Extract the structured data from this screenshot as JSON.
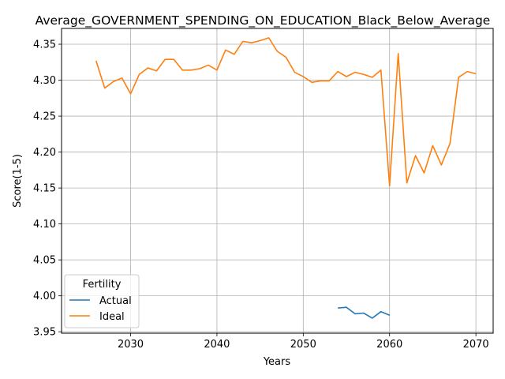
{
  "chart_data": {
    "type": "line",
    "title": "Average_GOVERNMENT_SPENDING_ON_EDUCATION_Black_Below_Average",
    "xlabel": "Years",
    "ylabel": "Score(1-5)",
    "xlim": [
      2022,
      2072
    ],
    "ylim": [
      3.948,
      4.372
    ],
    "xticks": [
      2030,
      2040,
      2050,
      2060,
      2070
    ],
    "yticks": [
      3.95,
      4.0,
      4.05,
      4.1,
      4.15,
      4.2,
      4.25,
      4.3,
      4.35
    ],
    "ytick_labels": [
      "3.95",
      "4.00",
      "4.05",
      "4.10",
      "4.15",
      "4.20",
      "4.25",
      "4.30",
      "4.35"
    ],
    "grid": true,
    "legend": {
      "title": "Fertility",
      "location": "lower-left"
    },
    "series": [
      {
        "name": "Actual",
        "color": "#1f77b4",
        "x": [
          2054,
          2055,
          2056,
          2057,
          2058,
          2059,
          2060
        ],
        "y": [
          3.983,
          3.984,
          3.975,
          3.976,
          3.969,
          3.978,
          3.973
        ]
      },
      {
        "name": "Ideal",
        "color": "#ff7f0e",
        "x": [
          2026,
          2027,
          2028,
          2029,
          2030,
          2031,
          2032,
          2033,
          2034,
          2035,
          2036,
          2037,
          2038,
          2039,
          2040,
          2041,
          2042,
          2043,
          2044,
          2045,
          2046,
          2047,
          2048,
          2049,
          2050,
          2051,
          2052,
          2053,
          2054,
          2055,
          2056,
          2057,
          2058,
          2059,
          2060,
          2061,
          2062,
          2063,
          2064,
          2065,
          2066,
          2067,
          2068,
          2069,
          2070
        ],
        "y": [
          4.327,
          4.289,
          4.298,
          4.303,
          4.281,
          4.308,
          4.317,
          4.313,
          4.329,
          4.329,
          4.314,
          4.314,
          4.316,
          4.321,
          4.314,
          4.342,
          4.336,
          4.354,
          4.352,
          4.355,
          4.359,
          4.34,
          4.332,
          4.311,
          4.305,
          4.297,
          4.299,
          4.299,
          4.312,
          4.305,
          4.311,
          4.308,
          4.304,
          4.314,
          4.153,
          4.337,
          4.157,
          4.195,
          4.171,
          4.209,
          4.182,
          4.212,
          4.304,
          4.312,
          4.309
        ]
      }
    ]
  }
}
